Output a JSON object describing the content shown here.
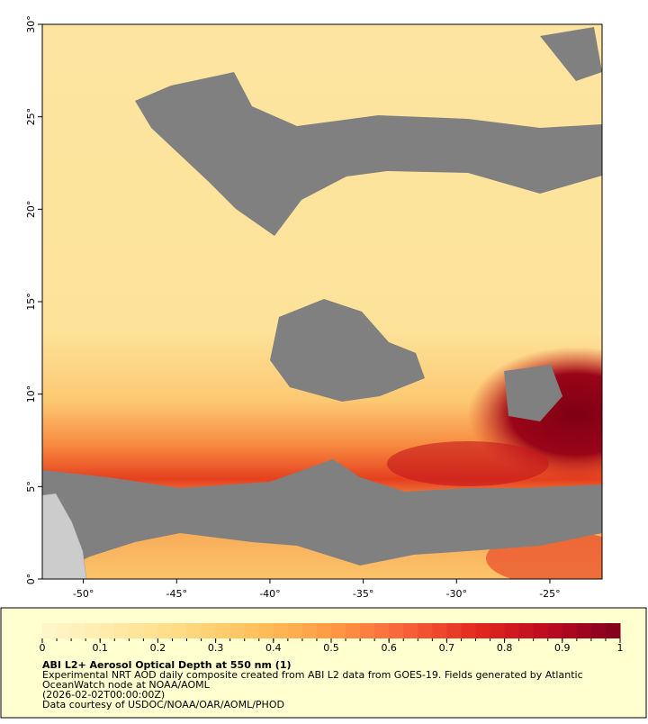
{
  "map": {
    "xlim": [
      -52.2,
      -22.2
    ],
    "ylim": [
      0,
      30
    ],
    "xticks": [
      {
        "value": -50,
        "label": "-50°"
      },
      {
        "value": -45,
        "label": "-45°"
      },
      {
        "value": -40,
        "label": "-40°"
      },
      {
        "value": -35,
        "label": "-35°"
      },
      {
        "value": -30,
        "label": "-30°"
      },
      {
        "value": -25,
        "label": "-25°"
      }
    ],
    "yticks": [
      {
        "value": 0,
        "label": "0°"
      },
      {
        "value": 5,
        "label": "5°"
      },
      {
        "value": 10,
        "label": "10°"
      },
      {
        "value": 15,
        "label": "15°"
      },
      {
        "value": 20,
        "label": "20°"
      },
      {
        "value": 25,
        "label": "25°"
      },
      {
        "value": 30,
        "label": "30°"
      }
    ]
  },
  "colorbar": {
    "lim": [
      0,
      1
    ],
    "ticks": [
      0,
      0.1,
      0.2,
      0.3,
      0.4,
      0.5,
      0.6,
      0.7,
      0.8,
      0.9,
      1
    ],
    "colormap": [
      "#fff7cc",
      "#ffeaa6",
      "#fed980",
      "#febf5a",
      "#fd9a44",
      "#f8643a",
      "#e3291f",
      "#bd0a20",
      "#80001e"
    ]
  },
  "caption": {
    "title": "ABI L2+ Aerosol Optical Depth at 550 nm (1)",
    "lines": [
      "Experimental NRT AOD daily composite created from ABI L2 data from GOES-19. Fields generated by Atlantic",
      "OceanWatch node at NOAA/AOML",
      "(2026-02-02T00:00:00Z)",
      "Data courtesy of USDOC/NOAA/OAR/AOML/PHOD"
    ]
  }
}
